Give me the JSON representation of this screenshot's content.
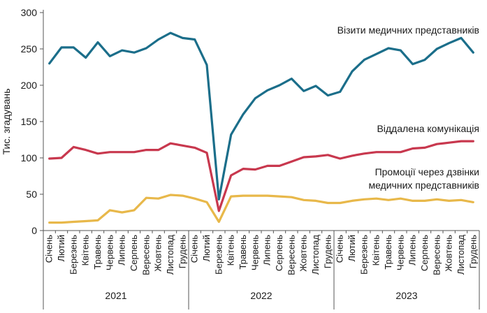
{
  "chart_data": {
    "type": "line",
    "ylabel": "Тис. згадувань",
    "xlabel": "",
    "title": "",
    "ylim": [
      0,
      300
    ],
    "yticks": [
      0,
      50,
      100,
      150,
      200,
      250,
      300
    ],
    "grid": false,
    "months": [
      "Січень",
      "Лютий",
      "Березень",
      "Квітень",
      "Травень",
      "Червень",
      "Липень",
      "Серпень",
      "Вересень",
      "Жовтень",
      "Листопад",
      "Грудень"
    ],
    "years": [
      "2021",
      "2022",
      "2023"
    ],
    "series": [
      {
        "name": "Візити медичних представників",
        "color": "#1b6e8a",
        "values": [
          230,
          252,
          252,
          238,
          259,
          240,
          248,
          245,
          251,
          263,
          272,
          265,
          263,
          228,
          43,
          132,
          160,
          182,
          193,
          200,
          209,
          192,
          199,
          186,
          191,
          219,
          235,
          243,
          251,
          248,
          229,
          235,
          250,
          258,
          265,
          245
        ]
      },
      {
        "name": "Віддалена комунікація",
        "color": "#c8384e",
        "values": [
          99,
          100,
          115,
          111,
          106,
          108,
          108,
          108,
          111,
          111,
          120,
          117,
          114,
          107,
          27,
          76,
          85,
          84,
          89,
          89,
          95,
          101,
          102,
          104,
          99,
          103,
          106,
          108,
          108,
          108,
          113,
          114,
          119,
          121,
          123,
          123
        ]
      },
      {
        "name": "Промоції через дзвінки медичних представників",
        "color": "#e8b84a",
        "values": [
          11,
          11,
          12,
          13,
          14,
          28,
          25,
          28,
          45,
          44,
          49,
          48,
          44,
          39,
          12,
          47,
          48,
          48,
          48,
          47,
          46,
          42,
          41,
          38,
          38,
          41,
          43,
          44,
          42,
          44,
          41,
          41,
          43,
          41,
          42,
          39
        ]
      }
    ],
    "series_labels": [
      {
        "lines": [
          "Візити медичних представників"
        ]
      },
      {
        "lines": [
          "Віддалена комунікація"
        ]
      },
      {
        "lines": [
          "Промоції через дзвінки",
          "медичних представників"
        ]
      }
    ]
  }
}
